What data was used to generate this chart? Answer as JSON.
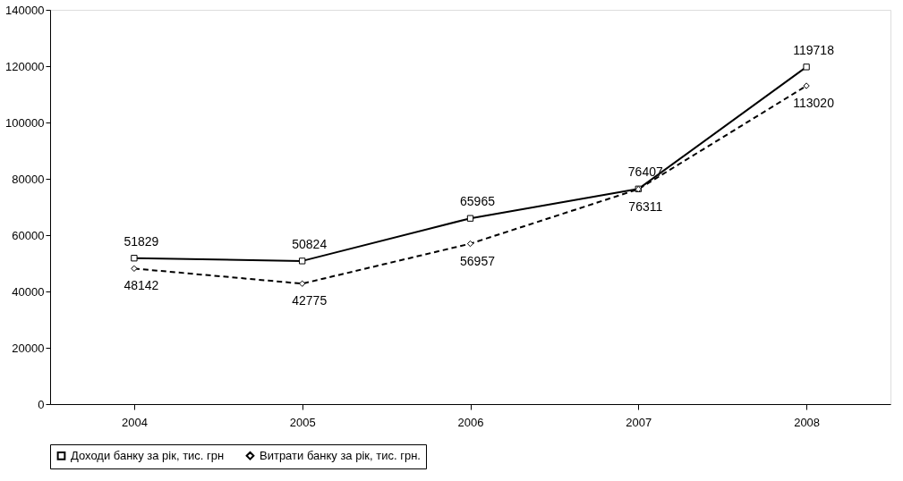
{
  "chart_data": {
    "type": "line",
    "categories": [
      "2004",
      "2005",
      "2006",
      "2007",
      "2008"
    ],
    "series": [
      {
        "name": "Доходи банку за рік, тис. грн",
        "color": "#000000",
        "marker": "square",
        "line_style": "solid",
        "values": [
          51829,
          50824,
          65965,
          76407,
          119718
        ]
      },
      {
        "name": "Витрати банку за рік, тис. грн.",
        "color": "#000000",
        "marker": "diamond",
        "line_style": "dashed",
        "values": [
          48142,
          42775,
          56957,
          76311,
          113020
        ]
      }
    ],
    "ylim": [
      0,
      140000
    ],
    "yticks": [
      0,
      20000,
      40000,
      60000,
      80000,
      100000,
      120000,
      140000
    ],
    "grid": false,
    "legend": "bottom",
    "data_labels": true
  }
}
